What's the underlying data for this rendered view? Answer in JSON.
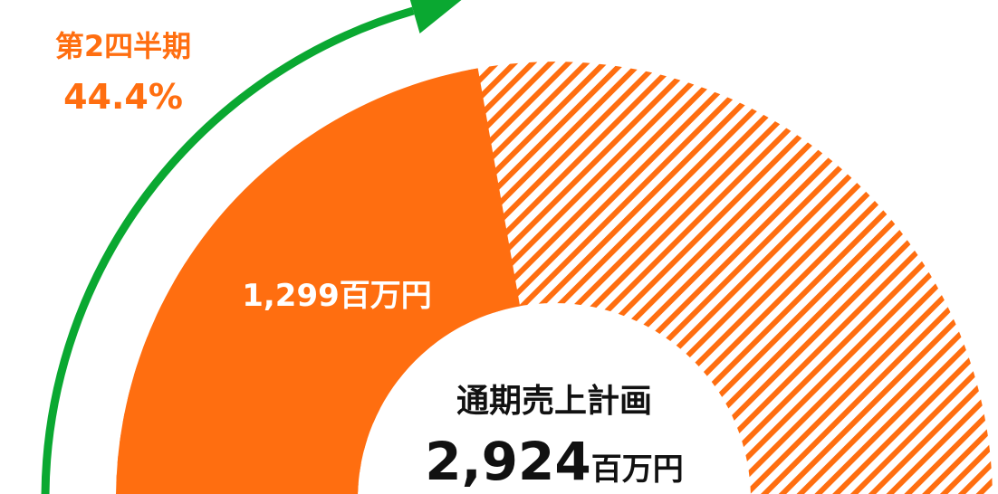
{
  "chart_data": {
    "type": "gauge",
    "period_label": "第2四半期",
    "percent": 44.4,
    "percent_label": "44.4%",
    "values": [
      1299
    ],
    "value_labels": [
      "1,299百万円"
    ],
    "total_title": "通期売上計画",
    "total": 2924,
    "total_label": "2,924",
    "total_unit": "百万円",
    "color": "#ff6e10",
    "arrow_color": "#0aa831"
  }
}
